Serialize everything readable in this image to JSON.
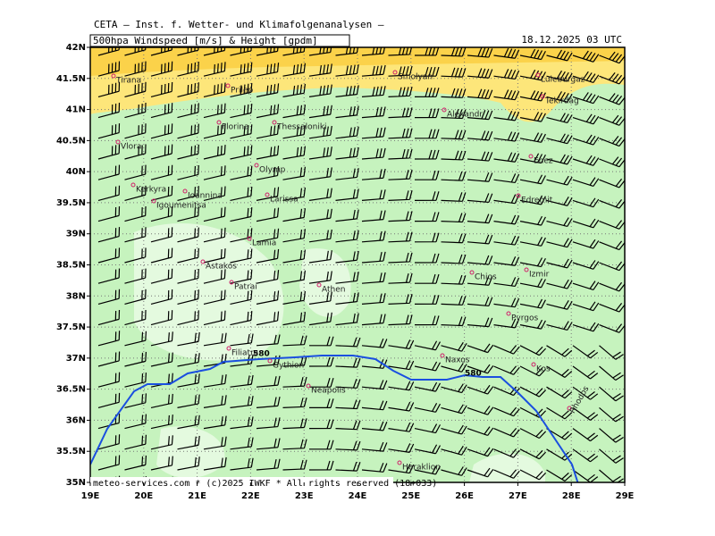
{
  "header": {
    "institute": "CETA — Inst. f. Wetter- und Klimafolgenanalysen —",
    "product": "500hpa Windspeed [m/s] & Height [gpdm]",
    "valid_time": "18.12.2025 03 UTC"
  },
  "footer": "meteo-services.com * (c)2025 IWKF * All rights reserved (18+033)",
  "lat_labels": [
    "42N",
    "41.5N",
    "41N",
    "40.5N",
    "40N",
    "39.5N",
    "39N",
    "38.5N",
    "38N",
    "37.5N",
    "37N",
    "36.5N",
    "36N",
    "35.5N",
    "35N"
  ],
  "lon_labels": [
    "19E",
    "20E",
    "21E",
    "22E",
    "23E",
    "24E",
    "25E",
    "26E",
    "27E",
    "28E",
    "29E"
  ],
  "contour_labels": [
    "580",
    "580"
  ],
  "cities": [
    "Tirana",
    "Prilep",
    "Smolyan",
    "Luleburgaz",
    "Tekirdag",
    "Alexandr",
    "Florina",
    "Thessaloniki",
    "Vlora",
    "Olymp",
    "Enez",
    "Kerkyra",
    "Ioannina",
    "Igoumenitsa",
    "Larissa",
    "Edremit",
    "Lamia",
    "Astakos",
    "Patrai",
    "Athen",
    "Chios",
    "Izmir",
    "Pyrgos",
    "Filiatra",
    "Gythion",
    "Naxos",
    "Kos",
    "Neapolis",
    "Rhodos",
    "Heraklion"
  ]
}
